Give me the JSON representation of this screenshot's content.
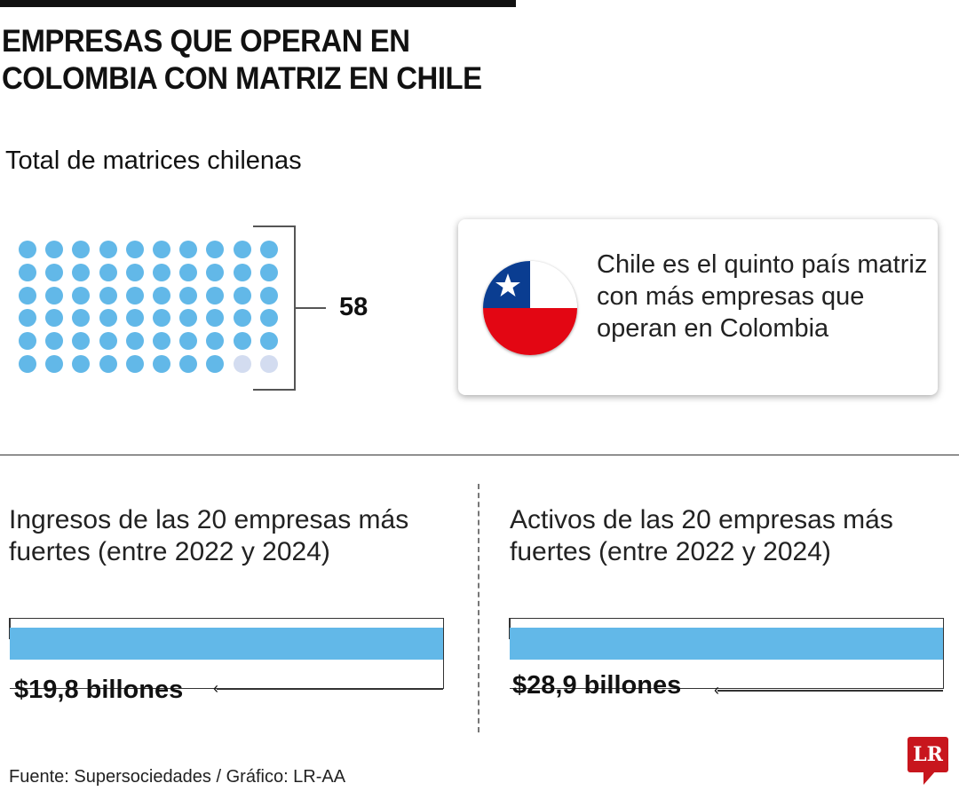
{
  "header": {
    "title_line1": "EMPRESAS QUE OPERAN EN",
    "title_line2": "COLOMBIA CON MATRIZ EN CHILE"
  },
  "dots_section": {
    "subtitle": "Total de matrices chilenas",
    "count_label": "58"
  },
  "card": {
    "text": "Chile es el quinto país matriz con más empresas que operan en Colombia",
    "flag_icon": "chile-flag-icon"
  },
  "panels": [
    {
      "title": "Ingresos de las 20 empresas más fuertes (entre 2022 y 2024)",
      "value_label": "$19,8 billones"
    },
    {
      "title": "Activos de las 20 empresas más fuertes (entre 2022 y 2024)",
      "value_label": "$28,9 billones"
    }
  ],
  "footer": {
    "source": "Fuente: Supersociedades / Gráfico: LR-AA",
    "logo": "LR"
  },
  "colors": {
    "filled": "#62b8e8",
    "empty": "#d3dcf0",
    "flag_blue": "#0a3d91",
    "flag_red": "#e30613",
    "logo_red": "#c8161d"
  },
  "chart_data": [
    {
      "type": "table",
      "title": "Total de matrices chilenas",
      "units_shown": 60,
      "filled": 58,
      "columns": 10,
      "rows": 6,
      "label": "58"
    },
    {
      "type": "bar",
      "title": "Ingresos de las 20 empresas más fuertes (entre 2022 y 2024)",
      "values": [
        19.8
      ],
      "unit": "billones",
      "label": "$19,8 billones"
    },
    {
      "type": "bar",
      "title": "Activos de las 20 empresas más fuertes (entre 2022 y 2024)",
      "values": [
        28.9
      ],
      "unit": "billones",
      "label": "$28,9 billones"
    }
  ]
}
